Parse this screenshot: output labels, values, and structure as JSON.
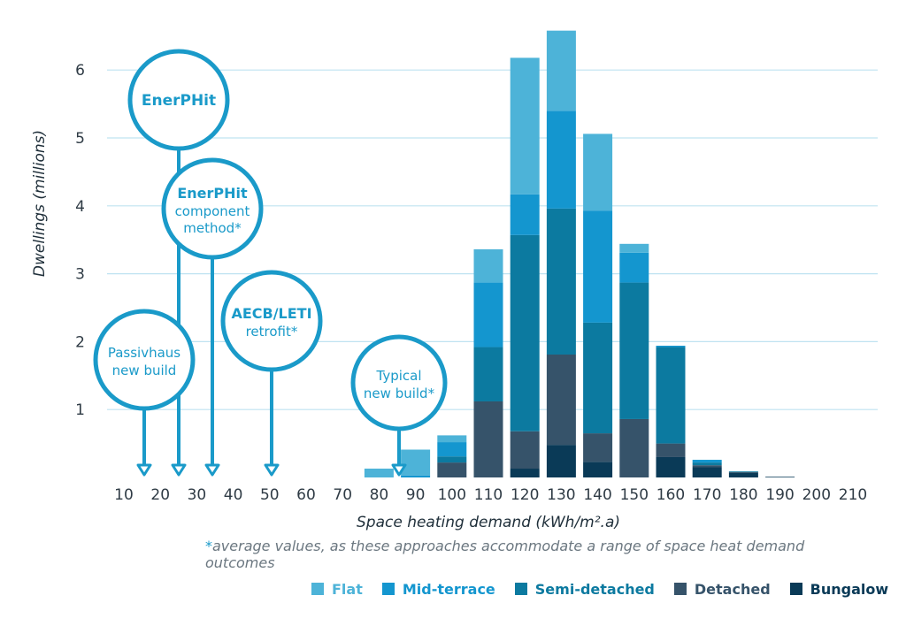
{
  "chart_data": {
    "type": "bar",
    "stacked": true,
    "ylabel": "Dwellings (millions)",
    "xlabel": "Space heating demand (kWh/m².a)",
    "yticks": [
      1,
      2,
      3,
      4,
      5,
      6
    ],
    "xticks": [
      10,
      20,
      30,
      40,
      50,
      60,
      70,
      80,
      90,
      100,
      110,
      120,
      130,
      140,
      150,
      160,
      170,
      180,
      190,
      200,
      210
    ],
    "xlim": [
      5,
      215
    ],
    "ylim": [
      0,
      6.6
    ],
    "grid": "horizontal",
    "categories": [
      80,
      90,
      100,
      110,
      120,
      130,
      140,
      150,
      160,
      170,
      180,
      190
    ],
    "series": [
      {
        "name": "Bungalow",
        "color": "#0a3a57",
        "values": [
          0,
          0,
          0,
          0,
          0.13,
          0.48,
          0.23,
          0,
          0.3,
          0.15,
          0.07,
          0.01
        ]
      },
      {
        "name": "Detached",
        "color": "#36536a",
        "values": [
          0,
          0,
          0.22,
          1.12,
          0.55,
          1.33,
          0.42,
          0.86,
          0.2,
          0.03,
          0.01,
          0
        ]
      },
      {
        "name": "Semi-detached",
        "color": "#0c7aa0",
        "values": [
          0,
          0,
          0.09,
          0.8,
          2.89,
          2.15,
          1.63,
          2.01,
          1.42,
          0.04,
          0.01,
          0
        ]
      },
      {
        "name": "Mid-terrace",
        "color": "#1496cf",
        "values": [
          0,
          0.03,
          0.21,
          0.95,
          0.6,
          1.44,
          1.65,
          0.44,
          0.02,
          0.04,
          0,
          0
        ]
      },
      {
        "name": "Flat",
        "color": "#4db3d8",
        "values": [
          0.13,
          0.38,
          0.1,
          0.49,
          2.01,
          1.18,
          1.13,
          0.13,
          0,
          0,
          0,
          0
        ]
      }
    ],
    "annotations": [
      {
        "title": "EnerPHit",
        "text": "",
        "target": 25
      },
      {
        "title": "EnerPHit",
        "text": "component method*",
        "target": 34
      },
      {
        "title": "AECB/LETI",
        "text": "retrofit*",
        "target": 50
      },
      {
        "title": "",
        "text": "Passivhaus new build",
        "target": 15
      },
      {
        "title": "",
        "text": "Typical new build*",
        "target": 85
      }
    ],
    "legend_position": "bottom"
  },
  "annotation_lines": {
    "enerphit": {
      "title": "EnerPHit"
    },
    "component": {
      "title": "EnerPHit",
      "line1": "component",
      "line2": "method*"
    },
    "aecb": {
      "title": "AECB/LETI",
      "line1": "retrofit*"
    },
    "passivhaus": {
      "line1": "Passivhaus",
      "line2": "new build"
    },
    "typical": {
      "line1": "Typical",
      "line2": "new build*"
    }
  },
  "footnote": {
    "star": "*",
    "text": "average values, as these approaches accommodate a range of space heat demand outcomes"
  },
  "colors": {
    "accent": "#1a9ac9",
    "grid": "#bfe3f1"
  }
}
